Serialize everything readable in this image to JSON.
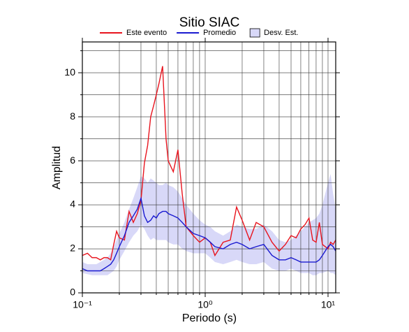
{
  "chart_data": {
    "type": "line",
    "title": "Sitio SIAC",
    "x_label": "Periodo (s)",
    "y_label": "Amplitud",
    "x_scale": "log",
    "xlim": [
      0.1,
      11.55
    ],
    "xticks": [
      {
        "value": 0.1,
        "label": "10⁻¹"
      },
      {
        "value": 1,
        "label": "10⁰"
      },
      {
        "value": 10,
        "label": "10¹"
      }
    ],
    "x_minor_ticks": [
      0.2,
      0.3,
      0.4,
      0.5,
      0.6,
      0.7,
      0.8,
      0.9,
      2,
      3,
      4,
      5,
      6,
      7,
      8,
      9
    ],
    "ylim": [
      0,
      11.4
    ],
    "yticks": [
      0,
      2,
      4,
      6,
      8,
      10
    ],
    "y_minor_ticks": [
      1,
      3,
      5,
      7,
      9,
      11
    ],
    "grid": true,
    "x": [
      0.1,
      0.11,
      0.12,
      0.13,
      0.14,
      0.15,
      0.16,
      0.17,
      0.18,
      0.19,
      0.2,
      0.22,
      0.24,
      0.26,
      0.28,
      0.3,
      0.32,
      0.34,
      0.36,
      0.38,
      0.4,
      0.42,
      0.45,
      0.48,
      0.5,
      0.55,
      0.6,
      0.65,
      0.7,
      0.8,
      0.9,
      1.0,
      1.1,
      1.2,
      1.4,
      1.6,
      1.8,
      2.0,
      2.3,
      2.6,
      3.0,
      3.5,
      4.0,
      4.5,
      5.0,
      5.5,
      6.0,
      6.5,
      7.0,
      7.5,
      8.0,
      8.5,
      9.0,
      10.0,
      10.5,
      11.0,
      11.55
    ],
    "band": {
      "name": "Desv. Est.",
      "color": "#d8d8f8",
      "lower": [
        0.9,
        0.85,
        0.8,
        0.8,
        0.8,
        0.8,
        0.8,
        0.9,
        1.0,
        1.2,
        1.5,
        1.9,
        2.3,
        2.6,
        2.8,
        3.1,
        2.9,
        2.6,
        2.4,
        2.5,
        2.4,
        2.4,
        2.4,
        2.4,
        2.3,
        2.2,
        2.2,
        2.0,
        1.9,
        1.8,
        1.8,
        1.8,
        1.6,
        1.4,
        1.3,
        1.4,
        1.5,
        1.4,
        1.3,
        1.3,
        1.4,
        1.1,
        1.0,
        1.0,
        1.1,
        1.0,
        0.9,
        0.9,
        0.9,
        0.8,
        0.8,
        0.9,
        0.9,
        1.0,
        0.9,
        0.9,
        0.8
      ],
      "upper": [
        1.4,
        1.3,
        1.3,
        1.3,
        1.4,
        1.5,
        1.6,
        1.8,
        2.1,
        2.4,
        2.7,
        3.2,
        3.8,
        4.3,
        4.8,
        5.3,
        5.2,
        5.0,
        5.2,
        5.1,
        5.0,
        4.9,
        4.9,
        5.0,
        4.9,
        4.8,
        4.6,
        4.3,
        4.0,
        3.6,
        3.3,
        3.1,
        3.0,
        2.8,
        2.6,
        2.8,
        3.1,
        3.0,
        2.9,
        2.9,
        3.1,
        2.8,
        2.4,
        2.3,
        2.4,
        2.6,
        2.8,
        3.0,
        3.2,
        3.3,
        3.4,
        3.6,
        4.0,
        5.0,
        5.4,
        4.5,
        3.8
      ]
    },
    "series": [
      {
        "name": "Este evento",
        "color": "#e8141e",
        "values": [
          1.7,
          1.8,
          1.6,
          1.6,
          1.5,
          1.6,
          1.6,
          1.5,
          2.2,
          2.8,
          2.5,
          2.4,
          3.7,
          3.2,
          3.6,
          4.2,
          5.9,
          6.7,
          8.0,
          8.5,
          9.0,
          9.5,
          10.3,
          7.0,
          6.0,
          5.5,
          6.5,
          4.5,
          3.0,
          2.6,
          2.3,
          2.5,
          2.3,
          1.7,
          2.3,
          2.4,
          3.9,
          3.3,
          2.4,
          3.2,
          3.0,
          2.3,
          1.9,
          2.2,
          2.6,
          2.5,
          2.9,
          3.1,
          3.4,
          2.4,
          2.3,
          3.2,
          2.2,
          2.0,
          2.3,
          2.2,
          2.4
        ]
      },
      {
        "name": "Promedio",
        "color": "#1a1ad0",
        "values": [
          1.1,
          1.0,
          1.0,
          1.0,
          1.0,
          1.1,
          1.2,
          1.3,
          1.5,
          1.8,
          2.1,
          2.6,
          3.2,
          3.5,
          3.8,
          4.3,
          3.5,
          3.2,
          3.3,
          3.5,
          3.4,
          3.6,
          3.7,
          3.7,
          3.6,
          3.5,
          3.4,
          3.2,
          3.0,
          2.7,
          2.6,
          2.5,
          2.3,
          2.1,
          2.0,
          2.2,
          2.3,
          2.2,
          2.0,
          2.1,
          2.2,
          1.7,
          1.5,
          1.5,
          1.6,
          1.5,
          1.4,
          1.4,
          1.4,
          1.4,
          1.4,
          1.5,
          1.7,
          2.1,
          2.2,
          2.1,
          1.9
        ]
      }
    ]
  }
}
